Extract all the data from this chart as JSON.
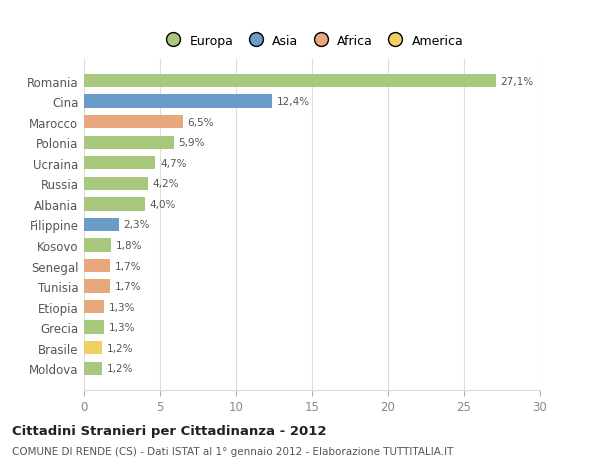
{
  "categories": [
    "Romania",
    "Cina",
    "Marocco",
    "Polonia",
    "Ucraina",
    "Russia",
    "Albania",
    "Filippine",
    "Kosovo",
    "Senegal",
    "Tunisia",
    "Etiopia",
    "Grecia",
    "Brasile",
    "Moldova"
  ],
  "values": [
    27.1,
    12.4,
    6.5,
    5.9,
    4.7,
    4.2,
    4.0,
    2.3,
    1.8,
    1.7,
    1.7,
    1.3,
    1.3,
    1.2,
    1.2
  ],
  "labels": [
    "27,1%",
    "12,4%",
    "6,5%",
    "5,9%",
    "4,7%",
    "4,2%",
    "4,0%",
    "2,3%",
    "1,8%",
    "1,7%",
    "1,7%",
    "1,3%",
    "1,3%",
    "1,2%",
    "1,2%"
  ],
  "colors": [
    "#a8c87e",
    "#6b9bc9",
    "#e8a87c",
    "#a8c87e",
    "#a8c87e",
    "#a8c87e",
    "#a8c87e",
    "#6b9bc9",
    "#a8c87e",
    "#e8a87c",
    "#e8a87c",
    "#e8a87c",
    "#a8c87e",
    "#f0d060",
    "#a8c87e"
  ],
  "legend_labels": [
    "Europa",
    "Asia",
    "Africa",
    "America"
  ],
  "legend_colors": [
    "#a8c87e",
    "#6b9bc9",
    "#e8a87c",
    "#f0d060"
  ],
  "title": "Cittadini Stranieri per Cittadinanza - 2012",
  "subtitle": "COMUNE DI RENDE (CS) - Dati ISTAT al 1° gennaio 2012 - Elaborazione TUTTITALIA.IT",
  "xlim": [
    0,
    30
  ],
  "xticks": [
    0,
    5,
    10,
    15,
    20,
    25,
    30
  ],
  "background_color": "#ffffff",
  "grid_color": "#dddddd",
  "bar_height": 0.65
}
